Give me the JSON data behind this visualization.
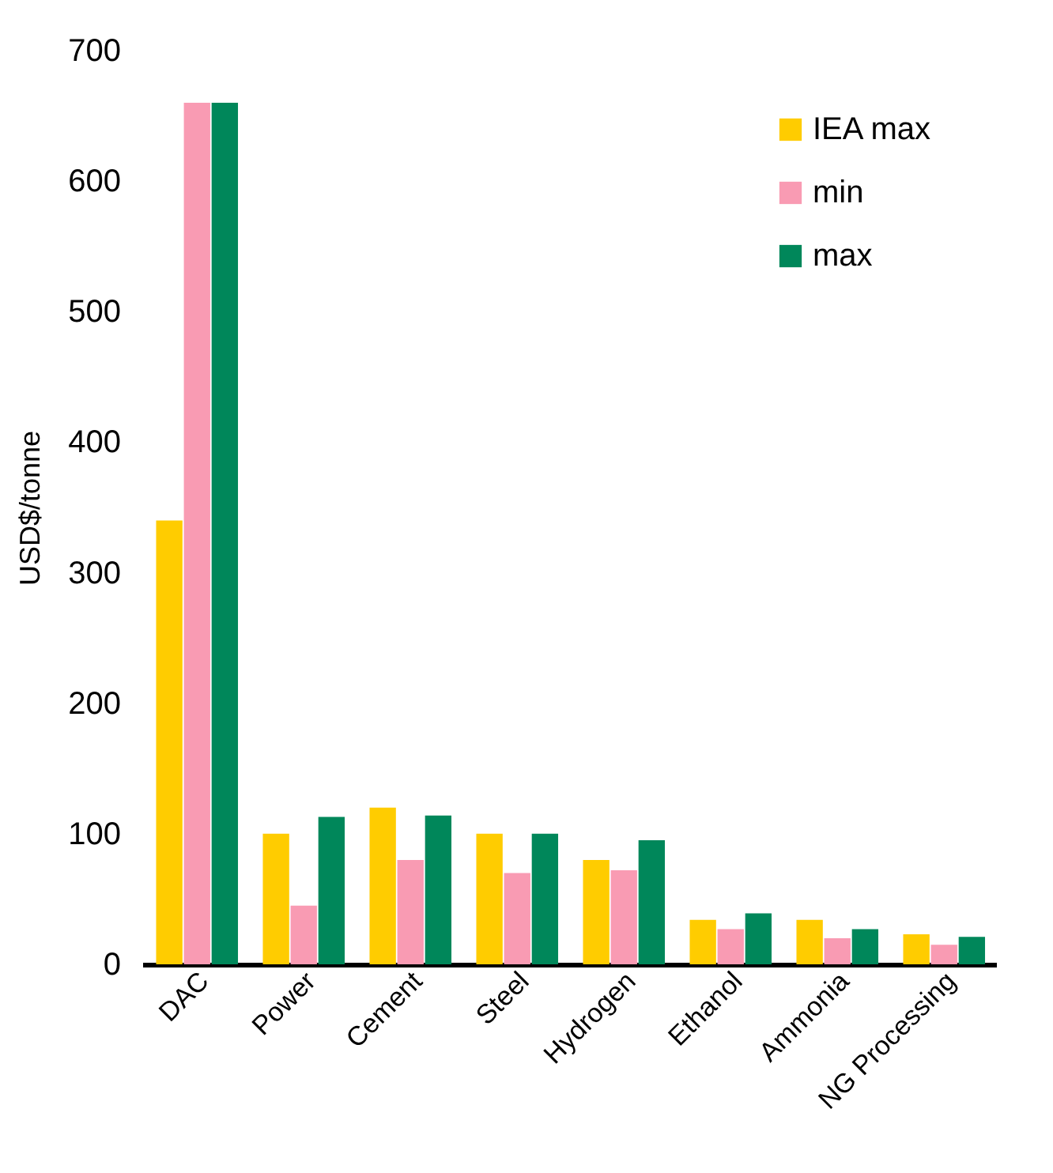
{
  "chart_data": {
    "type": "bar",
    "ylabel": "USD$/tonne",
    "categories": [
      "DAC",
      "Power",
      "Cement",
      "Steel",
      "Hydrogen",
      "Ethanol",
      "Ammonia",
      "NG Processing"
    ],
    "series": [
      {
        "name": "IEA max",
        "color": "#ffcc00",
        "values": [
          340,
          100,
          120,
          100,
          80,
          34,
          34,
          23
        ]
      },
      {
        "name": "min",
        "color": "#f99bb3",
        "values": [
          660,
          45,
          80,
          70,
          72,
          27,
          20,
          15
        ]
      },
      {
        "name": "max",
        "color": "#00875a",
        "values": [
          660,
          113,
          114,
          100,
          95,
          39,
          27,
          21
        ]
      }
    ],
    "ylim": [
      0,
      700
    ],
    "yticks": [
      0,
      100,
      200,
      300,
      400,
      500,
      600,
      700
    ],
    "grid": false,
    "legend": "top right"
  }
}
